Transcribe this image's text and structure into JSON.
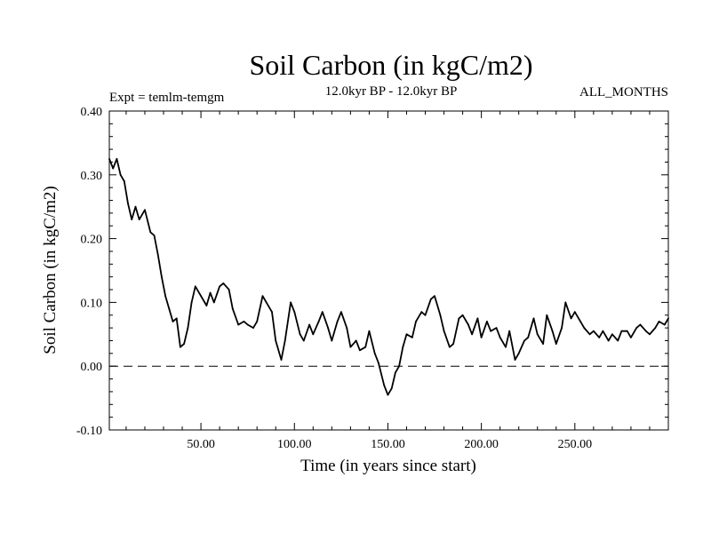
{
  "chart_data": {
    "type": "line",
    "title": "Soil Carbon (in kgC/m2)",
    "subtitle_left": "Expt = temlm-temgm",
    "subtitle_center": "12.0kyr BP - 12.0kyr BP",
    "subtitle_right": "ALL_MONTHS",
    "xlabel": "Time (in years since start)",
    "ylabel": "Soil Carbon (in kgC/m2)",
    "xlim": [
      1,
      300
    ],
    "ylim": [
      -0.1,
      0.4
    ],
    "x_ticks": [
      {
        "value": 50,
        "label": "50.00"
      },
      {
        "value": 100,
        "label": "100.00"
      },
      {
        "value": 150,
        "label": "150.00"
      },
      {
        "value": 200,
        "label": "200.00"
      },
      {
        "value": 250,
        "label": "250.00"
      }
    ],
    "y_ticks": [
      {
        "value": -0.1,
        "label": "-0.10"
      },
      {
        "value": 0.0,
        "label": "0.00"
      },
      {
        "value": 0.1,
        "label": "0.10"
      },
      {
        "value": 0.2,
        "label": "0.20"
      },
      {
        "value": 0.3,
        "label": "0.30"
      },
      {
        "value": 0.4,
        "label": "0.40"
      }
    ],
    "reference_line": {
      "y": 0.0,
      "style": "dashed"
    },
    "series": [
      {
        "name": "Soil Carbon",
        "color": "#000000",
        "x": [
          1,
          3,
          5,
          7,
          9,
          11,
          13,
          15,
          17,
          20,
          23,
          25,
          27,
          29,
          31,
          33,
          35,
          37,
          39,
          41,
          43,
          45,
          47,
          50,
          53,
          55,
          57,
          60,
          62,
          65,
          67,
          70,
          73,
          75,
          78,
          80,
          83,
          85,
          88,
          90,
          93,
          95,
          98,
          100,
          103,
          105,
          108,
          110,
          113,
          115,
          118,
          120,
          123,
          125,
          128,
          130,
          133,
          135,
          138,
          140,
          143,
          145,
          148,
          150,
          152,
          154,
          156,
          158,
          160,
          163,
          165,
          168,
          170,
          173,
          175,
          178,
          180,
          183,
          185,
          188,
          190,
          193,
          195,
          198,
          200,
          203,
          205,
          208,
          210,
          213,
          215,
          218,
          220,
          223,
          225,
          228,
          230,
          233,
          235,
          238,
          240,
          243,
          245,
          248,
          250,
          253,
          255,
          258,
          260,
          263,
          265,
          268,
          270,
          273,
          275,
          278,
          280,
          283,
          285,
          288,
          290,
          293,
          295,
          298,
          300
        ],
        "y": [
          0.325,
          0.31,
          0.325,
          0.3,
          0.29,
          0.255,
          0.23,
          0.25,
          0.23,
          0.245,
          0.21,
          0.205,
          0.175,
          0.14,
          0.11,
          0.09,
          0.07,
          0.075,
          0.03,
          0.035,
          0.06,
          0.1,
          0.125,
          0.11,
          0.095,
          0.115,
          0.1,
          0.125,
          0.13,
          0.12,
          0.09,
          0.065,
          0.07,
          0.065,
          0.06,
          0.07,
          0.11,
          0.1,
          0.085,
          0.04,
          0.01,
          0.04,
          0.1,
          0.085,
          0.05,
          0.04,
          0.065,
          0.05,
          0.07,
          0.085,
          0.06,
          0.04,
          0.07,
          0.085,
          0.06,
          0.03,
          0.04,
          0.025,
          0.03,
          0.055,
          0.02,
          0.005,
          -0.03,
          -0.045,
          -0.035,
          -0.01,
          0.0,
          0.03,
          0.05,
          0.045,
          0.07,
          0.085,
          0.08,
          0.105,
          0.11,
          0.08,
          0.055,
          0.03,
          0.035,
          0.075,
          0.08,
          0.065,
          0.05,
          0.075,
          0.045,
          0.07,
          0.055,
          0.06,
          0.045,
          0.03,
          0.055,
          0.01,
          0.02,
          0.04,
          0.045,
          0.075,
          0.05,
          0.035,
          0.08,
          0.055,
          0.035,
          0.06,
          0.1,
          0.075,
          0.085,
          0.07,
          0.06,
          0.05,
          0.055,
          0.045,
          0.055,
          0.04,
          0.05,
          0.04,
          0.055,
          0.055,
          0.045,
          0.06,
          0.065,
          0.055,
          0.05,
          0.06,
          0.07,
          0.065,
          0.075
        ]
      }
    ]
  }
}
